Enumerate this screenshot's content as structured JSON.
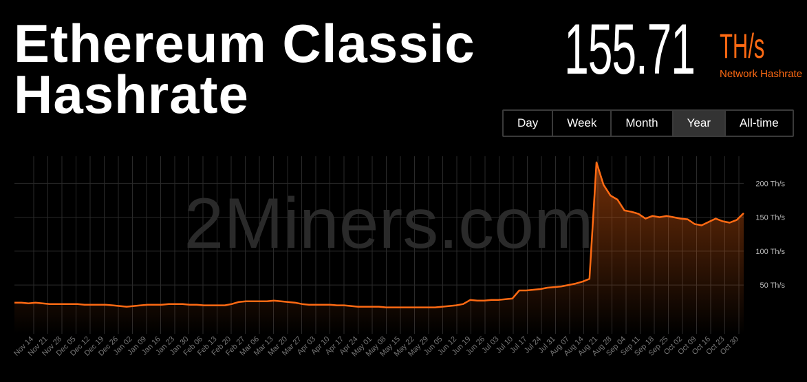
{
  "header": {
    "title_line1": "Ethereum Classic",
    "title_line2": "Hashrate",
    "hashrate_value": "155.71",
    "hashrate_unit": "TH/s",
    "hashrate_caption": "Network Hashrate"
  },
  "ranges": [
    {
      "label": "Day",
      "active": false
    },
    {
      "label": "Week",
      "active": false
    },
    {
      "label": "Month",
      "active": false
    },
    {
      "label": "Year",
      "active": true
    },
    {
      "label": "All-time",
      "active": false
    }
  ],
  "colors": {
    "accent": "#ff6a13",
    "background": "#000000",
    "grid": "#2a2a2a",
    "tick_text": "#777777"
  },
  "chart_data": {
    "type": "area",
    "watermark": "2Miners.com",
    "x_ticks": [
      "Nov 14",
      "Nov 21",
      "Nov 28",
      "Dec 05",
      "Dec 12",
      "Dec 19",
      "Dec 26",
      "Jan 02",
      "Jan 09",
      "Jan 16",
      "Jan 23",
      "Jan 30",
      "Feb 06",
      "Feb 13",
      "Feb 20",
      "Feb 27",
      "Mar 06",
      "Mar 13",
      "Mar 20",
      "Mar 27",
      "Apr 03",
      "Apr 10",
      "Apr 17",
      "Apr 24",
      "May 01",
      "May 08",
      "May 15",
      "May 22",
      "May 29",
      "Jun 05",
      "Jun 12",
      "Jun 19",
      "Jun 26",
      "Jul 03",
      "Jul 10",
      "Jul 17",
      "Jul 24",
      "Jul 31",
      "Aug 07",
      "Aug 14",
      "Aug 21",
      "Aug 28",
      "Sep 04",
      "Sep 11",
      "Sep 18",
      "Sep 25",
      "Oct 02",
      "Oct 09",
      "Oct 16",
      "Oct 23",
      "Oct 30"
    ],
    "y_ticks": [
      "50 Th/s",
      "100 Th/s",
      "150 Th/s",
      "200 Th/s"
    ],
    "y_tick_values": [
      50,
      100,
      150,
      200
    ],
    "ylim": [
      -22,
      240
    ],
    "series": [
      {
        "values": [
          24,
          24,
          23,
          24,
          23,
          22,
          22,
          22,
          22,
          22,
          21,
          21,
          21,
          21,
          20,
          19,
          18,
          19,
          20,
          21,
          21,
          21,
          22,
          22,
          22,
          21,
          21,
          20,
          20,
          20,
          20,
          22,
          25,
          26,
          26,
          26,
          26,
          27,
          26,
          25,
          24,
          22,
          21,
          21,
          21,
          21,
          20,
          20,
          19,
          18,
          18,
          18,
          18,
          17,
          17,
          17,
          17,
          17,
          17,
          17,
          17,
          18,
          19,
          20,
          22,
          28,
          27,
          27,
          28,
          28,
          29,
          30,
          42,
          42,
          43,
          44,
          46,
          47,
          48,
          50,
          52,
          55,
          59,
          231,
          198,
          182,
          176,
          160,
          158,
          155,
          148,
          152,
          150,
          152,
          150,
          148,
          147,
          140,
          138,
          143,
          148,
          144,
          142,
          146,
          156
        ]
      }
    ]
  }
}
